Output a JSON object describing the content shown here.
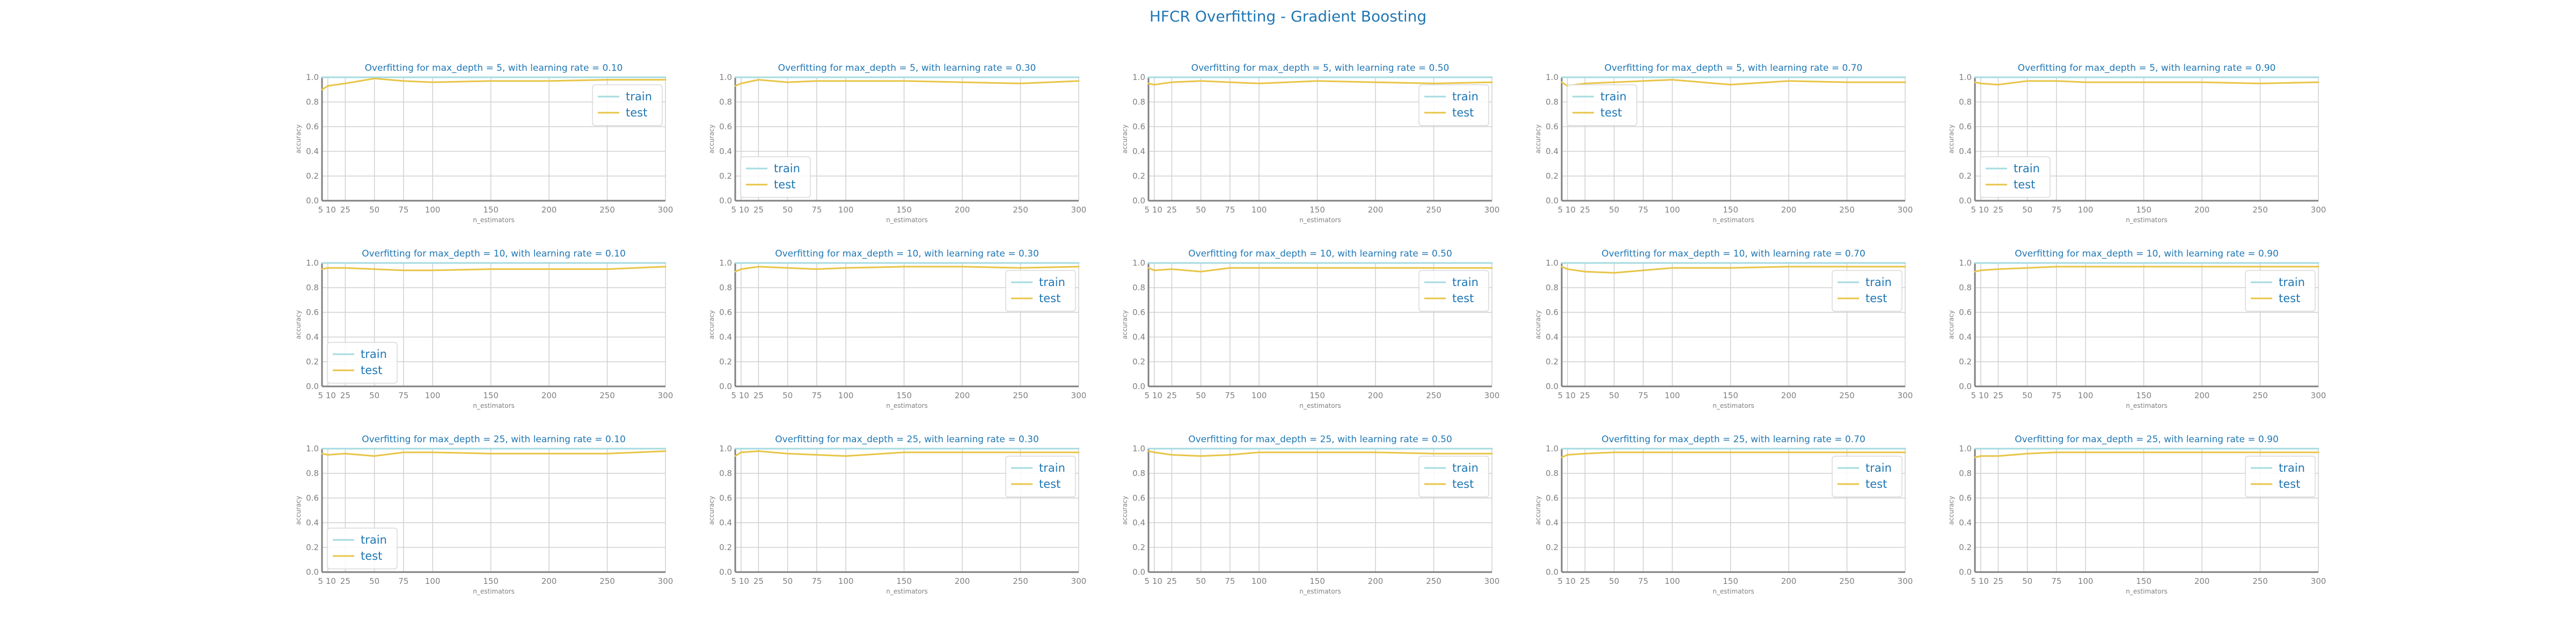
{
  "figure": {
    "title": "HFCR Overfitting - Gradient Boosting",
    "colors": {
      "train": "#a6dbe0",
      "test": "#e8c547",
      "title": "#1f77b4",
      "axis": "#808080",
      "grid": "#d0d0d0",
      "legend_text": "#1f77b4"
    }
  },
  "chart_data": [
    {
      "type": "line",
      "title": "Overfitting for max_depth = 5, with learning rate = 0.10",
      "xlabel": "n_estimators",
      "ylabel": "accuracy",
      "x": [
        5,
        10,
        25,
        50,
        75,
        100,
        150,
        200,
        250,
        300
      ],
      "x_ticks": [
        5,
        10,
        25,
        50,
        75,
        100,
        150,
        200,
        250,
        300
      ],
      "y_ticks": [
        0.0,
        0.2,
        0.4,
        0.6,
        0.8,
        1.0
      ],
      "ylim": [
        0.0,
        1.0
      ],
      "xlim": [
        5,
        300
      ],
      "legend": "upper right",
      "grid": true,
      "series": [
        {
          "name": "train",
          "values": [
            1.0,
            1.0,
            1.0,
            1.0,
            1.0,
            1.0,
            1.0,
            1.0,
            1.0,
            1.0
          ]
        },
        {
          "name": "test",
          "values": [
            0.9,
            0.93,
            0.95,
            0.99,
            0.97,
            0.96,
            0.97,
            0.97,
            0.98,
            0.98
          ]
        }
      ]
    },
    {
      "type": "line",
      "title": "Overfitting for max_depth = 5, with learning rate = 0.30",
      "xlabel": "n_estimators",
      "ylabel": "accuracy",
      "x": [
        5,
        10,
        25,
        50,
        75,
        100,
        150,
        200,
        250,
        300
      ],
      "x_ticks": [
        5,
        10,
        25,
        50,
        75,
        100,
        150,
        200,
        250,
        300
      ],
      "y_ticks": [
        0.0,
        0.2,
        0.4,
        0.6,
        0.8,
        1.0
      ],
      "ylim": [
        0.0,
        1.0
      ],
      "xlim": [
        5,
        300
      ],
      "legend": "lower left",
      "grid": true,
      "series": [
        {
          "name": "train",
          "values": [
            1.0,
            1.0,
            1.0,
            1.0,
            1.0,
            1.0,
            1.0,
            1.0,
            1.0,
            1.0
          ]
        },
        {
          "name": "test",
          "values": [
            0.93,
            0.95,
            0.98,
            0.96,
            0.97,
            0.97,
            0.97,
            0.96,
            0.95,
            0.97
          ]
        }
      ]
    },
    {
      "type": "line",
      "title": "Overfitting for max_depth = 5, with learning rate = 0.50",
      "xlabel": "n_estimators",
      "ylabel": "accuracy",
      "x": [
        5,
        10,
        25,
        50,
        75,
        100,
        150,
        200,
        250,
        300
      ],
      "x_ticks": [
        5,
        10,
        25,
        50,
        75,
        100,
        150,
        200,
        250,
        300
      ],
      "y_ticks": [
        0.0,
        0.2,
        0.4,
        0.6,
        0.8,
        1.0
      ],
      "ylim": [
        0.0,
        1.0
      ],
      "xlim": [
        5,
        300
      ],
      "legend": "upper right",
      "grid": true,
      "series": [
        {
          "name": "train",
          "values": [
            1.0,
            1.0,
            1.0,
            1.0,
            1.0,
            1.0,
            1.0,
            1.0,
            1.0,
            1.0
          ]
        },
        {
          "name": "test",
          "values": [
            0.95,
            0.94,
            0.96,
            0.97,
            0.96,
            0.95,
            0.97,
            0.96,
            0.95,
            0.96
          ]
        }
      ]
    },
    {
      "type": "line",
      "title": "Overfitting for max_depth = 5, with learning rate = 0.70",
      "xlabel": "n_estimators",
      "ylabel": "accuracy",
      "x": [
        5,
        10,
        25,
        50,
        75,
        100,
        150,
        200,
        250,
        300
      ],
      "x_ticks": [
        5,
        10,
        25,
        50,
        75,
        100,
        150,
        200,
        250,
        300
      ],
      "y_ticks": [
        0.0,
        0.2,
        0.4,
        0.6,
        0.8,
        1.0
      ],
      "ylim": [
        0.0,
        1.0
      ],
      "xlim": [
        5,
        300
      ],
      "legend": "upper left",
      "grid": true,
      "series": [
        {
          "name": "train",
          "values": [
            1.0,
            1.0,
            1.0,
            1.0,
            1.0,
            1.0,
            1.0,
            1.0,
            1.0,
            1.0
          ]
        },
        {
          "name": "test",
          "values": [
            0.96,
            0.93,
            0.95,
            0.96,
            0.97,
            0.98,
            0.94,
            0.97,
            0.96,
            0.96
          ]
        }
      ]
    },
    {
      "type": "line",
      "title": "Overfitting for max_depth = 5, with learning rate = 0.90",
      "xlabel": "n_estimators",
      "ylabel": "accuracy",
      "x": [
        5,
        10,
        25,
        50,
        75,
        100,
        150,
        200,
        250,
        300
      ],
      "x_ticks": [
        5,
        10,
        25,
        50,
        75,
        100,
        150,
        200,
        250,
        300
      ],
      "y_ticks": [
        0.0,
        0.2,
        0.4,
        0.6,
        0.8,
        1.0
      ],
      "ylim": [
        0.0,
        1.0
      ],
      "xlim": [
        5,
        300
      ],
      "legend": "lower left",
      "grid": true,
      "series": [
        {
          "name": "train",
          "values": [
            1.0,
            1.0,
            1.0,
            1.0,
            1.0,
            1.0,
            1.0,
            1.0,
            1.0,
            1.0
          ]
        },
        {
          "name": "test",
          "values": [
            0.96,
            0.95,
            0.94,
            0.97,
            0.97,
            0.96,
            0.96,
            0.96,
            0.95,
            0.96
          ]
        }
      ]
    },
    {
      "type": "line",
      "title": "Overfitting for max_depth = 10, with learning rate = 0.10",
      "xlabel": "n_estimators",
      "ylabel": "accuracy",
      "x": [
        5,
        10,
        25,
        50,
        75,
        100,
        150,
        200,
        250,
        300
      ],
      "x_ticks": [
        5,
        10,
        25,
        50,
        75,
        100,
        150,
        200,
        250,
        300
      ],
      "y_ticks": [
        0.0,
        0.2,
        0.4,
        0.6,
        0.8,
        1.0
      ],
      "ylim": [
        0.0,
        1.0
      ],
      "xlim": [
        5,
        300
      ],
      "legend": "lower left",
      "grid": true,
      "series": [
        {
          "name": "train",
          "values": [
            1.0,
            1.0,
            1.0,
            1.0,
            1.0,
            1.0,
            1.0,
            1.0,
            1.0,
            1.0
          ]
        },
        {
          "name": "test",
          "values": [
            0.95,
            0.96,
            0.96,
            0.95,
            0.94,
            0.94,
            0.95,
            0.95,
            0.95,
            0.97
          ]
        }
      ]
    },
    {
      "type": "line",
      "title": "Overfitting for max_depth = 10, with learning rate = 0.30",
      "xlabel": "n_estimators",
      "ylabel": "accuracy",
      "x": [
        5,
        10,
        25,
        50,
        75,
        100,
        150,
        200,
        250,
        300
      ],
      "x_ticks": [
        5,
        10,
        25,
        50,
        75,
        100,
        150,
        200,
        250,
        300
      ],
      "y_ticks": [
        0.0,
        0.2,
        0.4,
        0.6,
        0.8,
        1.0
      ],
      "ylim": [
        0.0,
        1.0
      ],
      "xlim": [
        5,
        300
      ],
      "legend": "upper right",
      "grid": true,
      "series": [
        {
          "name": "train",
          "values": [
            1.0,
            1.0,
            1.0,
            1.0,
            1.0,
            1.0,
            1.0,
            1.0,
            1.0,
            1.0
          ]
        },
        {
          "name": "test",
          "values": [
            0.93,
            0.95,
            0.97,
            0.96,
            0.95,
            0.96,
            0.97,
            0.97,
            0.96,
            0.97
          ]
        }
      ]
    },
    {
      "type": "line",
      "title": "Overfitting for max_depth = 10, with learning rate = 0.50",
      "xlabel": "n_estimators",
      "ylabel": "accuracy",
      "x": [
        5,
        10,
        25,
        50,
        75,
        100,
        150,
        200,
        250,
        300
      ],
      "x_ticks": [
        5,
        10,
        25,
        50,
        75,
        100,
        150,
        200,
        250,
        300
      ],
      "y_ticks": [
        0.0,
        0.2,
        0.4,
        0.6,
        0.8,
        1.0
      ],
      "ylim": [
        0.0,
        1.0
      ],
      "xlim": [
        5,
        300
      ],
      "legend": "upper right",
      "grid": true,
      "series": [
        {
          "name": "train",
          "values": [
            1.0,
            1.0,
            1.0,
            1.0,
            1.0,
            1.0,
            1.0,
            1.0,
            1.0,
            1.0
          ]
        },
        {
          "name": "test",
          "values": [
            0.96,
            0.94,
            0.95,
            0.93,
            0.96,
            0.96,
            0.96,
            0.96,
            0.96,
            0.96
          ]
        }
      ]
    },
    {
      "type": "line",
      "title": "Overfitting for max_depth = 10, with learning rate = 0.70",
      "xlabel": "n_estimators",
      "ylabel": "accuracy",
      "x": [
        5,
        10,
        25,
        50,
        75,
        100,
        150,
        200,
        250,
        300
      ],
      "x_ticks": [
        5,
        10,
        25,
        50,
        75,
        100,
        150,
        200,
        250,
        300
      ],
      "y_ticks": [
        0.0,
        0.2,
        0.4,
        0.6,
        0.8,
        1.0
      ],
      "ylim": [
        0.0,
        1.0
      ],
      "xlim": [
        5,
        300
      ],
      "legend": "upper right",
      "grid": true,
      "series": [
        {
          "name": "train",
          "values": [
            1.0,
            1.0,
            1.0,
            1.0,
            1.0,
            1.0,
            1.0,
            1.0,
            1.0,
            1.0
          ]
        },
        {
          "name": "test",
          "values": [
            0.97,
            0.95,
            0.93,
            0.92,
            0.94,
            0.96,
            0.96,
            0.97,
            0.97,
            0.97
          ]
        }
      ]
    },
    {
      "type": "line",
      "title": "Overfitting for max_depth = 10, with learning rate = 0.90",
      "xlabel": "n_estimators",
      "ylabel": "accuracy",
      "x": [
        5,
        10,
        25,
        50,
        75,
        100,
        150,
        200,
        250,
        300
      ],
      "x_ticks": [
        5,
        10,
        25,
        50,
        75,
        100,
        150,
        200,
        250,
        300
      ],
      "y_ticks": [
        0.0,
        0.2,
        0.4,
        0.6,
        0.8,
        1.0
      ],
      "ylim": [
        0.0,
        1.0
      ],
      "xlim": [
        5,
        300
      ],
      "legend": "upper right",
      "grid": true,
      "series": [
        {
          "name": "train",
          "values": [
            1.0,
            1.0,
            1.0,
            1.0,
            1.0,
            1.0,
            1.0,
            1.0,
            1.0,
            1.0
          ]
        },
        {
          "name": "test",
          "values": [
            0.93,
            0.94,
            0.95,
            0.96,
            0.97,
            0.97,
            0.97,
            0.97,
            0.97,
            0.97
          ]
        }
      ]
    },
    {
      "type": "line",
      "title": "Overfitting for max_depth = 25, with learning rate = 0.10",
      "xlabel": "n_estimators",
      "ylabel": "accuracy",
      "x": [
        5,
        10,
        25,
        50,
        75,
        100,
        150,
        200,
        250,
        300
      ],
      "x_ticks": [
        5,
        10,
        25,
        50,
        75,
        100,
        150,
        200,
        250,
        300
      ],
      "y_ticks": [
        0.0,
        0.2,
        0.4,
        0.6,
        0.8,
        1.0
      ],
      "ylim": [
        0.0,
        1.0
      ],
      "xlim": [
        5,
        300
      ],
      "legend": "lower left",
      "grid": true,
      "series": [
        {
          "name": "train",
          "values": [
            1.0,
            1.0,
            1.0,
            1.0,
            1.0,
            1.0,
            1.0,
            1.0,
            1.0,
            1.0
          ]
        },
        {
          "name": "test",
          "values": [
            0.96,
            0.95,
            0.96,
            0.94,
            0.97,
            0.97,
            0.96,
            0.96,
            0.96,
            0.98
          ]
        }
      ]
    },
    {
      "type": "line",
      "title": "Overfitting for max_depth = 25, with learning rate = 0.30",
      "xlabel": "n_estimators",
      "ylabel": "accuracy",
      "x": [
        5,
        10,
        25,
        50,
        75,
        100,
        150,
        200,
        250,
        300
      ],
      "x_ticks": [
        5,
        10,
        25,
        50,
        75,
        100,
        150,
        200,
        250,
        300
      ],
      "y_ticks": [
        0.0,
        0.2,
        0.4,
        0.6,
        0.8,
        1.0
      ],
      "ylim": [
        0.0,
        1.0
      ],
      "xlim": [
        5,
        300
      ],
      "legend": "upper right",
      "grid": true,
      "series": [
        {
          "name": "train",
          "values": [
            1.0,
            1.0,
            1.0,
            1.0,
            1.0,
            1.0,
            1.0,
            1.0,
            1.0,
            1.0
          ]
        },
        {
          "name": "test",
          "values": [
            0.94,
            0.97,
            0.98,
            0.96,
            0.95,
            0.94,
            0.97,
            0.97,
            0.97,
            0.97
          ]
        }
      ]
    },
    {
      "type": "line",
      "title": "Overfitting for max_depth = 25, with learning rate = 0.50",
      "xlabel": "n_estimators",
      "ylabel": "accuracy",
      "x": [
        5,
        10,
        25,
        50,
        75,
        100,
        150,
        200,
        250,
        300
      ],
      "x_ticks": [
        5,
        10,
        25,
        50,
        75,
        100,
        150,
        200,
        250,
        300
      ],
      "y_ticks": [
        0.0,
        0.2,
        0.4,
        0.6,
        0.8,
        1.0
      ],
      "ylim": [
        0.0,
        1.0
      ],
      "xlim": [
        5,
        300
      ],
      "legend": "upper right",
      "grid": true,
      "series": [
        {
          "name": "train",
          "values": [
            1.0,
            1.0,
            1.0,
            1.0,
            1.0,
            1.0,
            1.0,
            1.0,
            1.0,
            1.0
          ]
        },
        {
          "name": "test",
          "values": [
            0.98,
            0.97,
            0.95,
            0.94,
            0.95,
            0.97,
            0.97,
            0.97,
            0.96,
            0.96
          ]
        }
      ]
    },
    {
      "type": "line",
      "title": "Overfitting for max_depth = 25, with learning rate = 0.70",
      "xlabel": "n_estimators",
      "ylabel": "accuracy",
      "x": [
        5,
        10,
        25,
        50,
        75,
        100,
        150,
        200,
        250,
        300
      ],
      "x_ticks": [
        5,
        10,
        25,
        50,
        75,
        100,
        150,
        200,
        250,
        300
      ],
      "y_ticks": [
        0.0,
        0.2,
        0.4,
        0.6,
        0.8,
        1.0
      ],
      "ylim": [
        0.0,
        1.0
      ],
      "xlim": [
        5,
        300
      ],
      "legend": "upper right",
      "grid": true,
      "series": [
        {
          "name": "train",
          "values": [
            1.0,
            1.0,
            1.0,
            1.0,
            1.0,
            1.0,
            1.0,
            1.0,
            1.0,
            1.0
          ]
        },
        {
          "name": "test",
          "values": [
            0.93,
            0.95,
            0.96,
            0.97,
            0.97,
            0.97,
            0.97,
            0.97,
            0.97,
            0.97
          ]
        }
      ]
    },
    {
      "type": "line",
      "title": "Overfitting for max_depth = 25, with learning rate = 0.90",
      "xlabel": "n_estimators",
      "ylabel": "accuracy",
      "x": [
        5,
        10,
        25,
        50,
        75,
        100,
        150,
        200,
        250,
        300
      ],
      "x_ticks": [
        5,
        10,
        25,
        50,
        75,
        100,
        150,
        200,
        250,
        300
      ],
      "y_ticks": [
        0.0,
        0.2,
        0.4,
        0.6,
        0.8,
        1.0
      ],
      "ylim": [
        0.0,
        1.0
      ],
      "xlim": [
        5,
        300
      ],
      "legend": "upper right",
      "grid": true,
      "series": [
        {
          "name": "train",
          "values": [
            1.0,
            1.0,
            1.0,
            1.0,
            1.0,
            1.0,
            1.0,
            1.0,
            1.0,
            1.0
          ]
        },
        {
          "name": "test",
          "values": [
            0.93,
            0.94,
            0.94,
            0.96,
            0.97,
            0.97,
            0.97,
            0.97,
            0.97,
            0.97
          ]
        }
      ]
    }
  ]
}
